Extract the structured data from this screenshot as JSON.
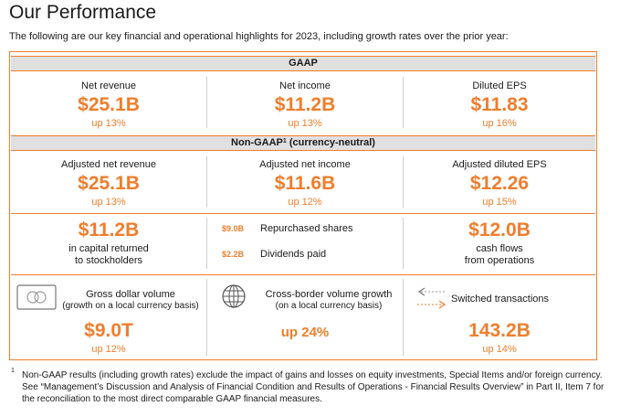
{
  "header": {
    "title": "Our Performance",
    "subtitle": "The following are our key financial and operational highlights for 2023, including growth rates over the prior year:"
  },
  "gaap": {
    "heading": "GAAP",
    "metrics": [
      {
        "label": "Net revenue",
        "value": "$25.1B",
        "growth": "up 13%"
      },
      {
        "label": "Net income",
        "value": "$11.2B",
        "growth": "up 13%"
      },
      {
        "label": "Diluted EPS",
        "value": "$11.83",
        "growth": "up 16%"
      }
    ]
  },
  "non_gaap": {
    "heading": "Non-GAAP",
    "footnote_mark": "1",
    "heading_suffix": "(currency-neutral)",
    "metrics": [
      {
        "label": "Adjusted net revenue",
        "value": "$25.1B",
        "growth": "up 13%"
      },
      {
        "label": "Adjusted net income",
        "value": "$11.6B",
        "growth": "up 12%"
      },
      {
        "label": "Adjusted diluted EPS",
        "value": "$12.26",
        "growth": "up 15%"
      }
    ]
  },
  "capital": {
    "value": "$11.2B",
    "label_line1": "in capital returned",
    "label_line2": "to stockholders",
    "breakdown": [
      {
        "amount": "$9.0B",
        "label": "Repurchased shares"
      },
      {
        "amount": "$2.2B",
        "label": "Dividends paid"
      }
    ],
    "cash_value": "$12.0B",
    "cash_line1": "cash flows",
    "cash_line2": "from operations"
  },
  "operational": [
    {
      "icon": "card-icon",
      "label": "Gross dollar volume",
      "sublabel": "(growth on a local currency basis)",
      "value": "$9.0T",
      "growth": "up 12%"
    },
    {
      "icon": "globe-icon",
      "label": "Cross-border volume growth",
      "sublabel": "(on a local currency basis)",
      "value": "",
      "growth": "up 24%"
    },
    {
      "icon": "exchange-arrows-icon",
      "label": "Switched transactions",
      "sublabel": "",
      "value": "143.2B",
      "growth": "up 14%"
    }
  ],
  "footnote": {
    "mark": "1",
    "text": "Non-GAAP results (including growth rates) exclude the impact of gains and losses on equity investments, Special Items and/or foreign currency. See “Management’s Discussion and Analysis of Financial Condition and Results of Operations - Financial Results Overview” in Part II, Item 7 for the reconciliation to the most direct comparable GAAP financial measures."
  },
  "colors": {
    "accent": "#f07d2c",
    "band": "#e0e0e0",
    "text": "#1a1a1a"
  }
}
